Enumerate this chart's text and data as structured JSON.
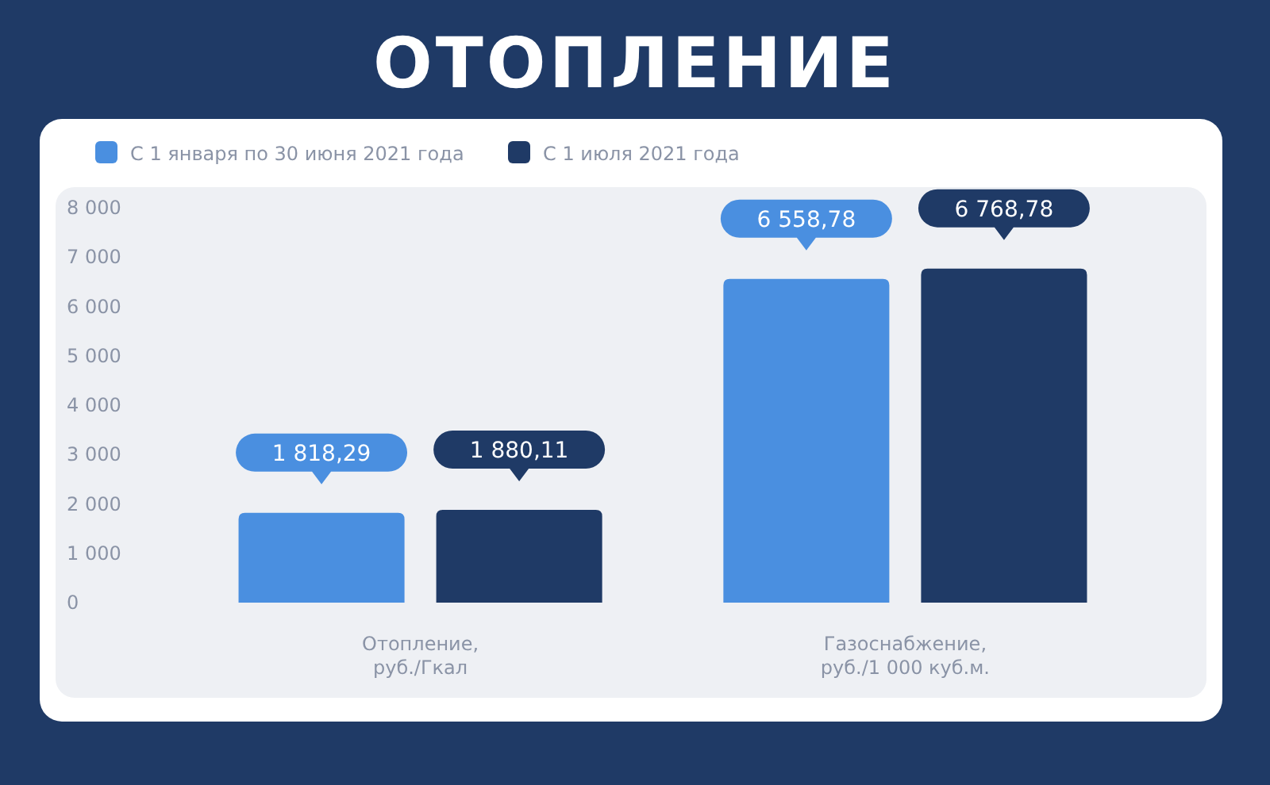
{
  "chart_data": {
    "type": "bar",
    "title": "ОТОПЛЕНИЕ",
    "categories": [
      "Отопление,\nруб./Гкал",
      "Газоснабжение,\nруб./1 000 куб.м."
    ],
    "series": [
      {
        "name": "С 1 января по 30 июня 2021 года",
        "color": "#4a8fe0",
        "values": [
          1818.29,
          6558.78
        ],
        "value_labels": [
          "1 818,29",
          "6 558,78"
        ]
      },
      {
        "name": "С 1 июля 2021 года",
        "color": "#1f3a66",
        "values": [
          1880.11,
          6768.78
        ],
        "value_labels": [
          "1 880,11",
          "6 768,78"
        ]
      }
    ],
    "ylim": [
      0,
      8000
    ],
    "yticks": [
      {
        "value": 0,
        "label": "0"
      },
      {
        "value": 1000,
        "label": "1 000"
      },
      {
        "value": 2000,
        "label": "2 000"
      },
      {
        "value": 3000,
        "label": "3 000"
      },
      {
        "value": 4000,
        "label": "4 000"
      },
      {
        "value": 5000,
        "label": "5 000"
      },
      {
        "value": 6000,
        "label": "6 000"
      },
      {
        "value": 7000,
        "label": "7 000"
      },
      {
        "value": 8000,
        "label": "8 000"
      }
    ],
    "legend": "top left"
  }
}
